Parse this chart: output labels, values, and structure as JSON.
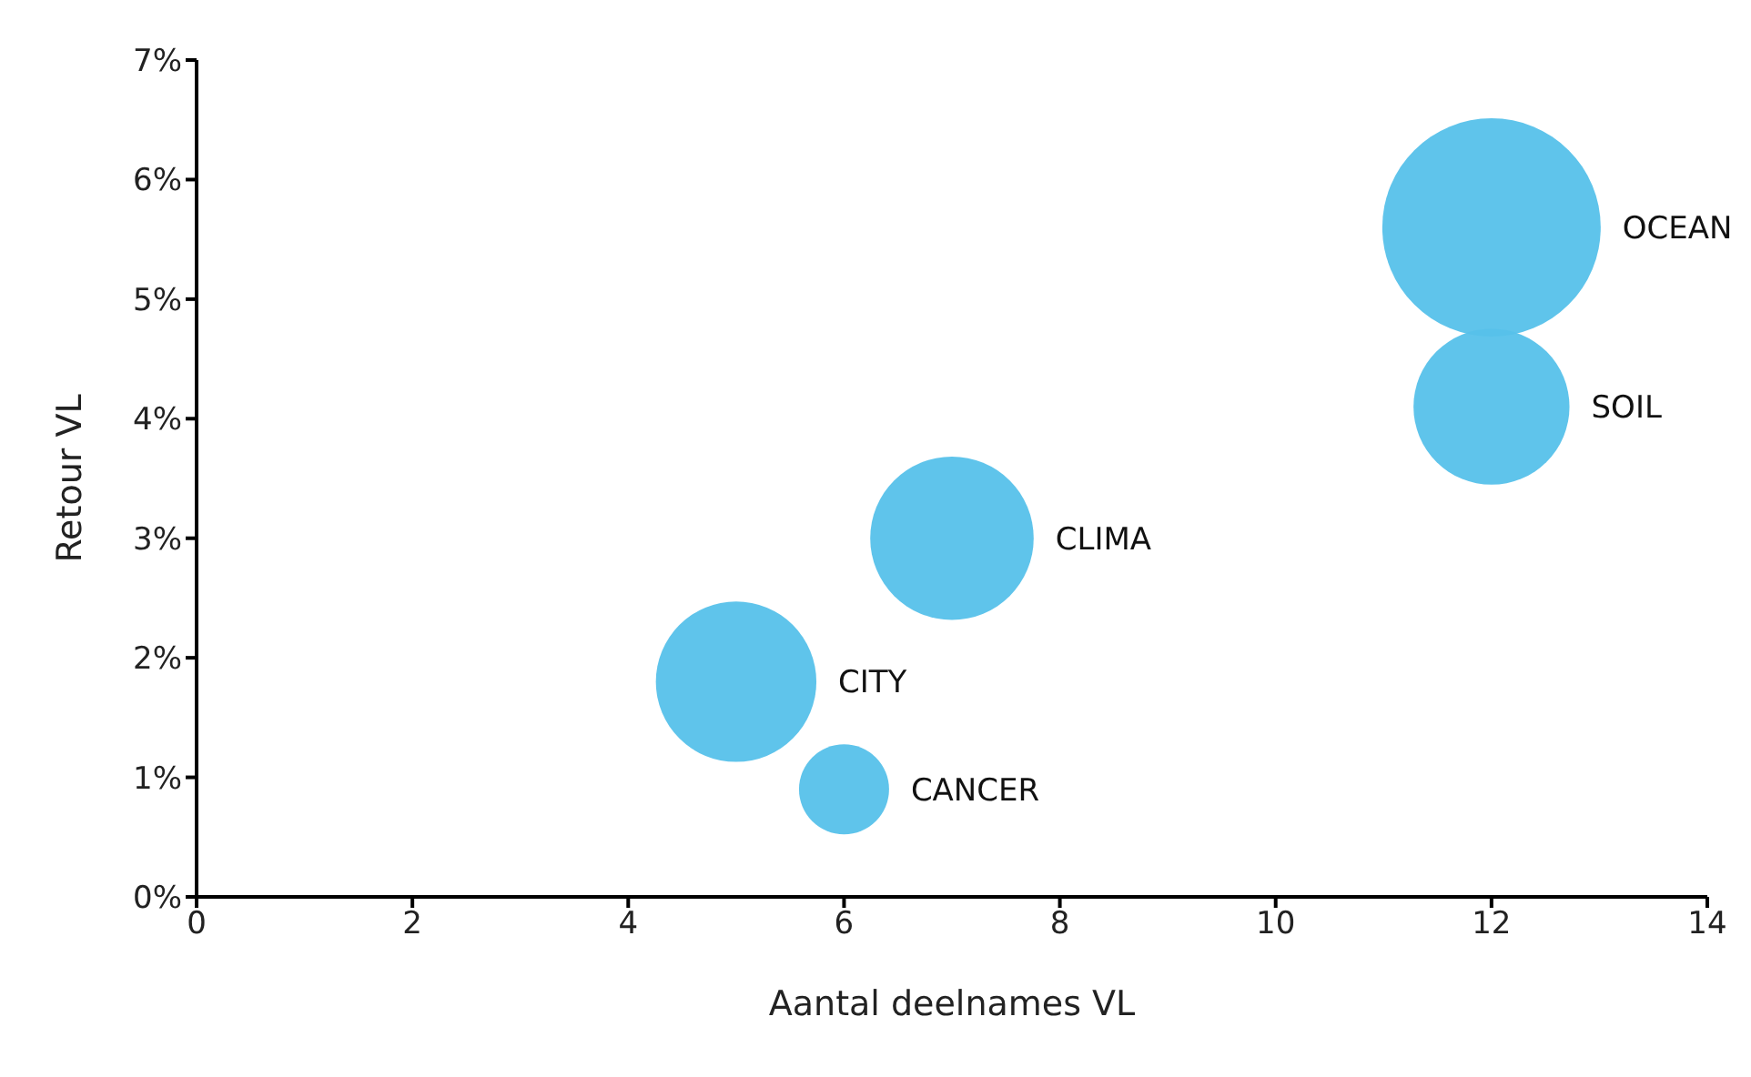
{
  "chart_data": {
    "type": "bubble",
    "xlabel": "Aantal deelnames VL",
    "ylabel": "Retour VL",
    "series": [
      {
        "name": "OCEAN",
        "color": "#56c1ea",
        "x": [
          12
        ],
        "values": [
          5.6
        ],
        "sizes": [
          1
        ]
      },
      {
        "name": "SOIL",
        "color": "#56c1ea",
        "x": [
          12
        ],
        "values": [
          4.1
        ],
        "sizes": [
          0.51
        ]
      },
      {
        "name": "CLIMA",
        "color": "#56c1ea",
        "x": [
          7
        ],
        "values": [
          3.0
        ],
        "sizes": [
          0.56
        ]
      },
      {
        "name": "CITY",
        "color": "#56c1ea",
        "x": [
          5
        ],
        "values": [
          1.8
        ],
        "sizes": [
          0.54
        ]
      },
      {
        "name": "CANCER",
        "color": "#56c1ea",
        "x": [
          6
        ],
        "values": [
          0.9
        ],
        "sizes": [
          0.17
        ]
      }
    ],
    "xlim": [
      0,
      14
    ],
    "xticks": [
      0,
      2,
      4,
      6,
      8,
      10,
      12,
      14
    ],
    "ylim": [
      0,
      7
    ],
    "yticks": [
      {
        "value": 0,
        "label": "0%"
      },
      {
        "value": 1,
        "label": "1%"
      },
      {
        "value": 2,
        "label": "2%"
      },
      {
        "value": 3,
        "label": "3%"
      },
      {
        "value": 4,
        "label": "4%"
      },
      {
        "value": 5,
        "label": "5%"
      },
      {
        "value": 6,
        "label": "6%"
      },
      {
        "value": 7,
        "label": "7%"
      }
    ],
    "grid": false,
    "legend": false
  }
}
